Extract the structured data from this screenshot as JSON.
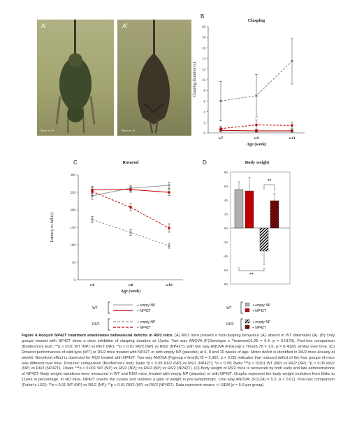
{
  "panels": {
    "A": {
      "letter": "A",
      "caption": "Mouse nr. 60"
    },
    "A2": {
      "letter": "A'",
      "caption": "Mouse nr. 54"
    },
    "B": {
      "letter": "B"
    },
    "C": {
      "letter": "C"
    },
    "D": {
      "letter": "D"
    }
  },
  "chart_data": [
    {
      "type": "line",
      "title": "Clasping",
      "xlabel": "Age (week)",
      "ylabel": "Clasping duration (s)",
      "categories": [
        "w7",
        "w9",
        "w11"
      ],
      "ylim": [
        0,
        20
      ],
      "yticks": [
        0,
        2,
        4,
        6,
        8,
        10,
        12,
        14,
        16,
        18,
        20
      ],
      "series": [
        {
          "group": "R6/2 + empty NP",
          "color": "#808080",
          "values": [
            6.0,
            7.0,
            13.5
          ],
          "err": [
            3.7,
            4.0,
            4.3
          ]
        },
        {
          "group": "R6/2 + NP42T",
          "color": "#c00000",
          "values": [
            0.8,
            1.5,
            1.4
          ],
          "err": [
            0.5,
            0.9,
            0.6
          ]
        },
        {
          "group": "WT + empty NP",
          "color": "#aaaaaa",
          "values": [
            0.4,
            0.3,
            0.3
          ],
          "err": [
            0.2,
            0.2,
            0.2
          ]
        },
        {
          "group": "WT + NP42T",
          "color": "#c00000",
          "values": [
            0.5,
            0.4,
            0.4
          ],
          "err": [
            0.2,
            0.2,
            0.2
          ]
        }
      ]
    },
    {
      "type": "line",
      "title": "Rotarod",
      "xlabel": "Age (week)",
      "ylabel": "Latency to fall (s)",
      "categories": [
        "w6",
        "w8",
        "w10"
      ],
      "ylim": [
        0,
        300
      ],
      "yticks": [
        0,
        50,
        100,
        150,
        200,
        250,
        300
      ],
      "series": [
        {
          "group": "WT + empty NP",
          "color": "#999999",
          "values": [
            240,
            262,
            270
          ],
          "err": [
            10,
            8,
            9
          ]
        },
        {
          "group": "WT + NP42T",
          "color": "#c00000",
          "values": [
            257,
            258,
            250
          ],
          "err": [
            10,
            8,
            9
          ]
        },
        {
          "group": "R6/2 + empty NP",
          "color": "#999999",
          "values": [
            172,
            135,
            97
          ],
          "err": [
            9,
            8,
            7
          ]
        },
        {
          "group": "R6/2 + NP42T",
          "color": "#c00000",
          "values": [
            252,
            207,
            148
          ],
          "err": [
            12,
            10,
            12
          ]
        }
      ]
    },
    {
      "type": "bar",
      "title": "Body weight",
      "ylim": [
        -8,
        8
      ],
      "yticks": [
        "8%",
        "6%",
        "4%",
        "2%",
        "0%",
        "-2%",
        "-4%",
        "-6%",
        "-8%"
      ],
      "categories": [
        "WT + empty NP",
        "WT + NP42T",
        "R6/2 + empty NP",
        "R6/2 + NP42T"
      ],
      "values": [
        5.5,
        5.3,
        -3.3,
        3.9
      ],
      "err": [
        1.1,
        1.9,
        1.9,
        1.0
      ],
      "colors": [
        "#b0b0b0",
        "#c00000",
        "hatch-black",
        "hatch-red"
      ],
      "significance": [
        "**",
        "**"
      ]
    }
  ],
  "legend": {
    "wt_label": "WT",
    "r62_label": "R6/2",
    "empty_np": "+ empty NP",
    "np42t": "+ NP42T"
  },
  "caption": {
    "title": "Figure 4 Aonys® NP42T treatment ameliorates behavioural deficits in R6/2 mice.",
    "body": "(A) R6/2 mice present a foot-clasping behaviour (A') absent in WT littermates (A). (B) Only groups treated with NP42T show a clear inhibition of clasping duration at 11wks: Two way ANOVA (F(Genotype x Treatment)1,25 = 6.4, p = 0.0179). Post-hoc comparison (Bonferroni's test): **p < 0.01 WT (NP) vs R6/2 (NP); **p < 0.01 R6/2 (NP) vs R6/2 (NP42T); with two way ANOVA (F(Group x Time)6,78 = 1.0, p = 0.4022) similar over time. (C) Rotarod performances of wild-type (WT) or R6/2 mice treated with NP42T or with empty NP (placebo) at 6, 8 and 10 weeks of age. Motor deficit is identified in R6/2 mice already at week6. Beneficial effect is observed for R6/2 treated with NP42T: Two way ANOVA (F(group x time)6,78 = 2.362, p < 0.05) indicates that reduced deficit of the four groups of mice was different over time. Post-hoc comparison (Bonferroni's test): 6wks *p < 0.05 R6/2 (NP) vs R6/2 (NP42T); *p < 0.05; 8wks ***p < 0.001 WT (NP) vs R6/2 (NP); *p < 0.05 R6/2 (NP) vs R6/2 (NP42T); 10wks ***p < 0.001 WT (NP) vs R6/2 (NP); ns R6/2 (NP) vs R6/2 (NP42T). (D) Body weight of R6/2 mice is recovered by both early and late administrations of NP42T. Body weight variations were measured in WT and R6/2 mice, treated with empty NP (placebo) or with NP42T. Graphs represent the body weight evolution from 8wks to 11wks in percentage. In HD mice, NP42T inverts the curves and restores a gain of weight in pre-symptomatic. One way ANOVA: (F(3,24) = 5.2, p < 0.01). Post-hoc comparison (Fisher's LSD): **p < 0.01 WT (NP) vs R6/2 (NP); **p < 0.01 R6/2 (NP) vs R6/2 (NP42T). Data represent means +/−SEM (n = 5-9 per group)."
  }
}
